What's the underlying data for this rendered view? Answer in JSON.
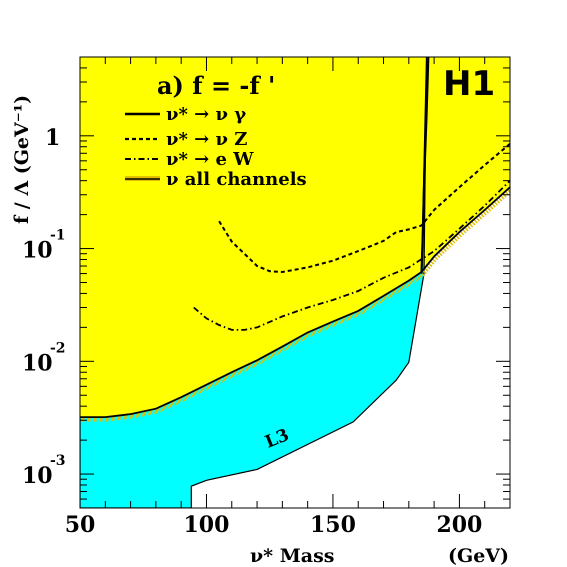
{
  "chart_data": {
    "type": "line",
    "title": "a) f = -f '",
    "experiment": "H1",
    "xlabel": "ν* Mass",
    "xunit": "(GeV)",
    "ylabel": "f / Λ (GeV⁻¹)",
    "xlim": [
      50,
      220
    ],
    "ylim": [
      0.0005,
      5
    ],
    "yscale": "log",
    "x_ticks": [
      50,
      100,
      150,
      200
    ],
    "x_tick_labels": [
      "50",
      "100",
      "150",
      "200"
    ],
    "y_ticks": [
      {
        "value": 0.001,
        "base": "10",
        "exp": "-3"
      },
      {
        "value": 0.01,
        "base": "10",
        "exp": "-2"
      },
      {
        "value": 0.1,
        "base": "10",
        "exp": "-1"
      },
      {
        "value": 1,
        "base": "1",
        "exp": ""
      }
    ],
    "regions": [
      {
        "name": "H1 excluded",
        "color": "#ffff00",
        "boundary_x": [
          50,
          60,
          70,
          80,
          90,
          100,
          110,
          120,
          130,
          140,
          150,
          160,
          170,
          180,
          185,
          190,
          200,
          210,
          220
        ],
        "boundary_y": [
          0.0032,
          0.0032,
          0.0034,
          0.0038,
          0.0048,
          0.0062,
          0.008,
          0.0102,
          0.0135,
          0.018,
          0.0225,
          0.028,
          0.038,
          0.052,
          0.062,
          0.085,
          0.14,
          0.22,
          0.35
        ]
      },
      {
        "name": "L3",
        "label": "L3",
        "color": "#00ffff",
        "boundary_x": [
          94,
          94,
          100,
          120,
          158,
          175,
          180,
          186,
          187
        ],
        "boundary_y": [
          0.0005,
          0.00078,
          0.00088,
          0.0011,
          0.0029,
          0.0068,
          0.0098,
          0.06,
          5
        ]
      }
    ],
    "series": [
      {
        "name": "ν* → ν γ",
        "style": "solid",
        "x": [
          185,
          185.6,
          186.2,
          187,
          187.7
        ],
        "y": [
          0.06,
          0.15,
          0.5,
          1.5,
          5
        ]
      },
      {
        "name": "ν* → ν Z",
        "style": "dashed",
        "x": [
          105,
          110,
          115,
          120,
          125,
          130,
          140,
          150,
          160,
          170,
          175,
          180,
          185,
          190,
          200,
          210,
          220
        ],
        "y": [
          0.175,
          0.115,
          0.09,
          0.07,
          0.063,
          0.062,
          0.068,
          0.078,
          0.095,
          0.117,
          0.14,
          0.148,
          0.16,
          0.22,
          0.35,
          0.55,
          0.85
        ]
      },
      {
        "name": "ν* → e W",
        "style": "dash-dot",
        "x": [
          95,
          100,
          105,
          110,
          115,
          120,
          130,
          140,
          150,
          160,
          170,
          180,
          190,
          200,
          210,
          220
        ],
        "y": [
          0.03,
          0.024,
          0.021,
          0.019,
          0.019,
          0.02,
          0.025,
          0.03,
          0.035,
          0.042,
          0.055,
          0.068,
          0.095,
          0.15,
          0.24,
          0.4
        ]
      },
      {
        "name": "ν* all channels",
        "legend_label": "ν   all channels",
        "style": "solid-thin",
        "x": [
          50,
          60,
          70,
          80,
          90,
          100,
          110,
          120,
          130,
          140,
          150,
          160,
          170,
          180,
          185,
          190,
          200,
          210,
          220
        ],
        "y": [
          0.0032,
          0.0032,
          0.0034,
          0.0038,
          0.0048,
          0.0062,
          0.008,
          0.0102,
          0.0135,
          0.018,
          0.0225,
          0.028,
          0.038,
          0.052,
          0.062,
          0.085,
          0.14,
          0.22,
          0.35
        ]
      }
    ],
    "colors": {
      "excluded": "#ffff00",
      "l3": "#00ffff",
      "line": "#000000",
      "hatch": "#e0c000"
    },
    "legend_position": "top-left",
    "grid": false
  }
}
